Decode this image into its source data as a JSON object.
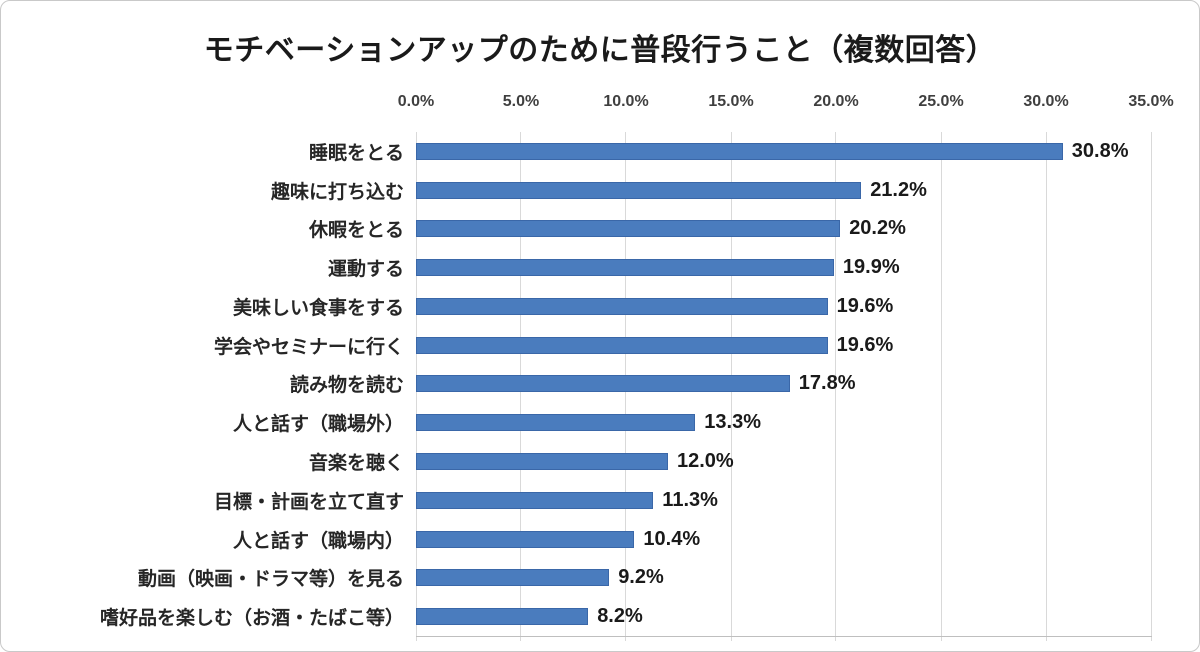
{
  "chart_data": {
    "type": "bar",
    "orientation": "horizontal",
    "title": "モチベーションアップのために普段行うこと（複数回答）",
    "categories": [
      "睡眠をとる",
      "趣味に打ち込む",
      "休暇をとる",
      "運動する",
      "美味しい食事をする",
      "学会やセミナーに行く",
      "読み物を読む",
      "人と話す（職場外）",
      "音楽を聴く",
      "目標・計画を立て直す",
      "人と話す（職場内）",
      "動画（映画・ドラマ等）を見る",
      "嗜好品を楽しむ（お酒・たばこ等）"
    ],
    "values": [
      30.8,
      21.2,
      20.2,
      19.9,
      19.6,
      19.6,
      17.8,
      13.3,
      12.0,
      11.3,
      10.4,
      9.2,
      8.2
    ],
    "data_labels": [
      "30.8%",
      "21.2%",
      "20.2%",
      "19.9%",
      "19.6%",
      "19.6%",
      "17.8%",
      "13.3%",
      "12.0%",
      "11.3%",
      "10.4%",
      "9.2%",
      "8.2%"
    ],
    "x_axis_ticks": [
      "0.0%",
      "5.0%",
      "10.0%",
      "15.0%",
      "20.0%",
      "25.0%",
      "30.0%",
      "35.0%"
    ],
    "xlim": [
      0,
      35
    ],
    "xlabel": "",
    "ylabel": "",
    "grid": true,
    "legend_position": "none",
    "axis_position": "top",
    "bar_color": "#4a7cbe",
    "bar_border_color": "#3a67a8",
    "gridline_color": "#d9d9d9",
    "title_color": "#1a1a1a",
    "label_color": "#262626"
  }
}
